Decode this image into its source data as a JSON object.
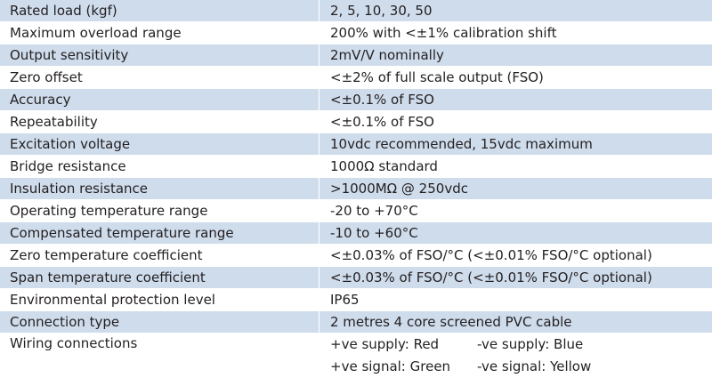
{
  "specs": [
    {
      "label": "Rated load (kgf)",
      "value": "2, 5, 10, 30, 50"
    },
    {
      "label": "Maximum overload range",
      "value": "200% with <±1% calibration shift"
    },
    {
      "label": "Output sensitivity",
      "value": "2mV/V nominally"
    },
    {
      "label": "Zero offset",
      "value": "<±2% of full scale output (FSO)"
    },
    {
      "label": "Accuracy",
      "value": "<±0.1% of FSO"
    },
    {
      "label": "Repeatability",
      "value": "<±0.1% of FSO"
    },
    {
      "label": "Excitation voltage",
      "value": "10vdc recommended, 15vdc maximum"
    },
    {
      "label": "Bridge resistance",
      "value": "1000Ω standard"
    },
    {
      "label": "Insulation resistance",
      "value": ">1000MΩ @ 250vdc"
    },
    {
      "label": "Operating temperature range",
      "value": "-20 to +70°C"
    },
    {
      "label": "Compensated temperature range",
      "value": "-10 to +60°C"
    },
    {
      "label": "Zero temperature coefficient",
      "value": "<±0.03% of FSO/°C (<±0.01% FSO/°C optional)"
    },
    {
      "label": "Span temperature coefficient",
      "value": "<±0.03% of FSO/°C (<±0.01% FSO/°C optional)"
    },
    {
      "label": "Environmental protection level",
      "value": "IP65"
    },
    {
      "label": "Connection type",
      "value": "2 metres 4 core screened PVC cable"
    }
  ],
  "wiring": {
    "label": "Wiring connections",
    "pos_supply": "+ve supply: Red",
    "neg_supply": "-ve supply: Blue",
    "pos_signal": "+ve signal: Green",
    "neg_signal": "-ve signal: Yellow"
  },
  "colors": {
    "shaded_row": "#cfdcec",
    "plain_row": "#ffffff",
    "text": "#231f20"
  }
}
